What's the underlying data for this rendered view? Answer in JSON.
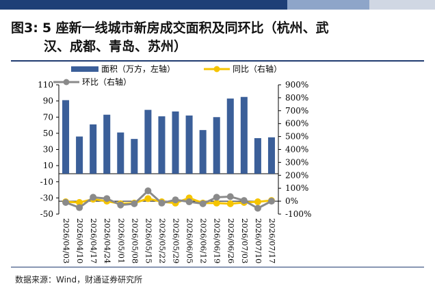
{
  "header": {
    "bar_colors": [
      "#1e3f77",
      "#8ea5c9",
      "#d0d7e3"
    ],
    "figure_label": "图3:",
    "title_line1": "5 座新一线城市新房成交面积及同环比（杭州、武",
    "title_line2": "汉、成都、青岛、苏州）",
    "rule_color": "#1f3b70"
  },
  "footer": {
    "source": "数据来源：Wind，财通证券研究所"
  },
  "chart_data": {
    "type": "bar",
    "categories": [
      "2026/04/03",
      "2026/04/10",
      "2026/04/17",
      "2026/04/24",
      "2026/05/01",
      "2026/05/08",
      "2026/05/15",
      "2026/05/22",
      "2026/05/29",
      "2026/06/05",
      "2026/06/12",
      "2026/06/19",
      "2026/06/26",
      "2026/07/03",
      "2026/07/10",
      "2026/07/17"
    ],
    "series": [
      {
        "name": "面积（万方，左轴）",
        "type": "bar",
        "axis": "left",
        "color": "#3b5f99",
        "values": [
          91,
          46,
          61,
          73,
          51,
          43,
          79,
          71,
          77,
          72,
          54,
          70,
          93,
          95,
          44,
          45
        ]
      },
      {
        "name": "同比（右轴）",
        "type": "line",
        "axis": "right",
        "color": "#f5c400",
        "values": [
          -5,
          -10,
          15,
          0,
          -20,
          -15,
          20,
          -5,
          -15,
          25,
          -15,
          -15,
          -20,
          -10,
          -5,
          5
        ]
      },
      {
        "name": "环比（右轴）",
        "type": "line",
        "axis": "right",
        "color": "#8a8a8a",
        "values": [
          -10,
          -50,
          30,
          20,
          -30,
          -20,
          80,
          -15,
          10,
          -5,
          -20,
          30,
          35,
          5,
          -55,
          0
        ]
      }
    ],
    "y_left": {
      "min": -50,
      "max": 110,
      "ticks": [
        -50,
        -30,
        -10,
        10,
        30,
        50,
        70,
        90,
        110
      ]
    },
    "y_right": {
      "min": -100,
      "max": 900,
      "ticks": [
        -100,
        0,
        100,
        200,
        300,
        400,
        500,
        600,
        700,
        800,
        900
      ],
      "tick_labels": [
        "-100%",
        "0%",
        "100%",
        "200%",
        "300%",
        "400%",
        "500%",
        "600%",
        "700%",
        "800%",
        "900%"
      ]
    },
    "legend_position": "top",
    "grid": false
  }
}
